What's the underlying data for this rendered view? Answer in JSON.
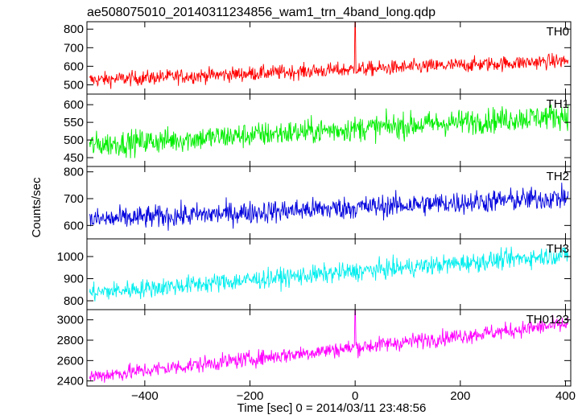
{
  "figure": {
    "title": "ae508075010_20140311234856_wam1_trn_4band_long.qdp",
    "xlabel": "Time [sec] 0 = 2014/03/11 23:48:56",
    "ylabel": "Counts/sec"
  },
  "chart_data": [
    {
      "type": "line",
      "series_name": "TH0",
      "color": "#ff0000",
      "x_range": [
        -510,
        410
      ],
      "ylim": [
        450,
        840
      ],
      "y_ticks": [
        500,
        600,
        700,
        800
      ],
      "trend": {
        "start": 525,
        "end": 630
      },
      "noise_amplitude": 28,
      "spike": {
        "x": 0,
        "y": 840
      }
    },
    {
      "type": "line",
      "series_name": "TH1",
      "color": "#00ee00",
      "x_range": [
        -510,
        410
      ],
      "ylim": [
        425,
        630
      ],
      "y_ticks": [
        450,
        500,
        550,
        600
      ],
      "trend": {
        "start": 485,
        "end": 570
      },
      "noise_amplitude": 25
    },
    {
      "type": "line",
      "series_name": "TH2",
      "color": "#0000dd",
      "x_range": [
        -510,
        410
      ],
      "ylim": [
        550,
        820
      ],
      "y_ticks": [
        600,
        700,
        800
      ],
      "trend": {
        "start": 620,
        "end": 705
      },
      "noise_amplitude": 30
    },
    {
      "type": "line",
      "series_name": "TH3",
      "color": "#00eeee",
      "x_range": [
        -510,
        410
      ],
      "ylim": [
        760,
        1080
      ],
      "y_ticks": [
        800,
        900,
        1000
      ],
      "trend": {
        "start": 835,
        "end": 1010
      },
      "noise_amplitude": 30
    },
    {
      "type": "line",
      "series_name": "TH0123",
      "color": "#ff00ff",
      "x_range": [
        -510,
        410
      ],
      "ylim": [
        2350,
        3100
      ],
      "y_ticks": [
        2400,
        2600,
        2800,
        3000
      ],
      "trend": {
        "start": 2440,
        "end": 2960
      },
      "noise_amplitude": 55,
      "spike": {
        "x": 0,
        "y": 3100
      }
    }
  ],
  "x_axis": {
    "ticks": [
      -400,
      -200,
      0,
      200,
      400
    ],
    "tick_labels": [
      "−400",
      "−200",
      "0",
      "200",
      "400"
    ]
  }
}
